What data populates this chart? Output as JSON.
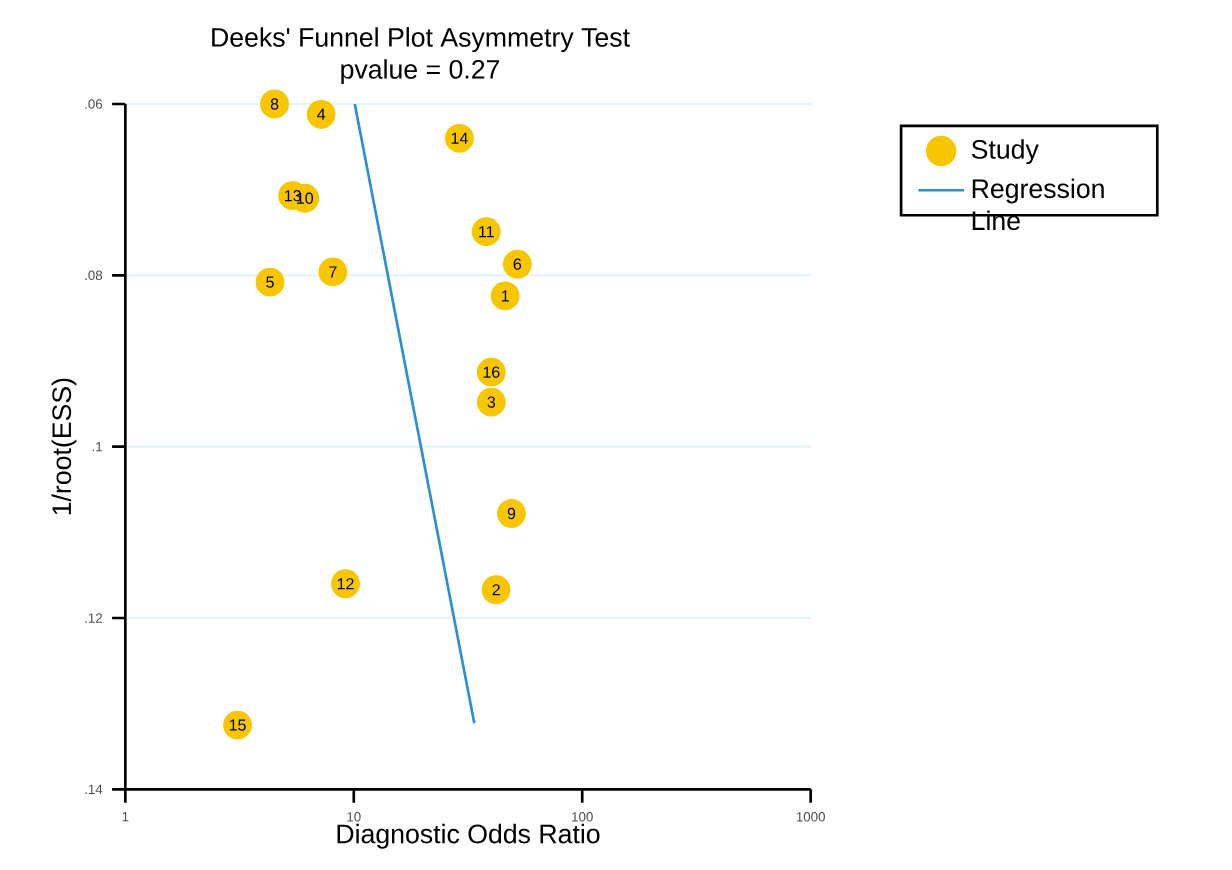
{
  "chart_data": {
    "type": "scatter",
    "title": "Deeks' Funnel Plot Asymmetry Test",
    "subtitle": "pvalue =   0.27",
    "xlabel": "Diagnostic Odds Ratio",
    "ylabel": "1/root(ESS)",
    "log": "x",
    "xlim": [
      1,
      1000
    ],
    "xticks": [
      1,
      10,
      100,
      1000
    ],
    "ylim": [
      0.14,
      0.06
    ],
    "yticks": [
      {
        "value": 0.06,
        "label": ".06"
      },
      {
        "value": 0.08,
        "label": ".08"
      },
      {
        "value": 0.1,
        "label": ".1"
      },
      {
        "value": 0.12,
        "label": ".12"
      },
      {
        "value": 0.14,
        "label": ".14"
      }
    ],
    "grid": "y",
    "legend": "right",
    "series": [
      {
        "name": "Study",
        "marker": "circle",
        "color": "#f7c600",
        "x": [
          4.5,
          7.2,
          29,
          5.4,
          6.1,
          38,
          52,
          8.1,
          4.3,
          46,
          40,
          40,
          49,
          9.2,
          42,
          3.1
        ],
        "values": [
          0.06,
          0.0612,
          0.064,
          0.0707,
          0.071,
          0.0749,
          0.0787,
          0.0796,
          0.0808,
          0.0824,
          0.0913,
          0.0948,
          0.1078,
          0.116,
          0.1167,
          0.1325
        ]
      },
      {
        "name": "Regression Line",
        "type": "line",
        "line_style": "solid",
        "color": "#2a8fd4",
        "x": [
          10.1,
          33.7
        ],
        "values": [
          0.06,
          0.1323
        ]
      }
    ],
    "annotations": [
      {
        "text": "8",
        "x": 4.5,
        "y": 0.06
      },
      {
        "text": "4",
        "x": 7.2,
        "y": 0.0612
      },
      {
        "text": "14",
        "x": 29,
        "y": 0.064
      },
      {
        "text": "13",
        "x": 5.4,
        "y": 0.0707
      },
      {
        "text": "10",
        "x": 6.1,
        "y": 0.071
      },
      {
        "text": "11",
        "x": 38,
        "y": 0.0749
      },
      {
        "text": "6",
        "x": 52,
        "y": 0.0787
      },
      {
        "text": "7",
        "x": 8.1,
        "y": 0.0796
      },
      {
        "text": "5",
        "x": 4.3,
        "y": 0.0808
      },
      {
        "text": "1",
        "x": 46,
        "y": 0.0824
      },
      {
        "text": "16",
        "x": 40,
        "y": 0.0913
      },
      {
        "text": "3",
        "x": 40,
        "y": 0.0948
      },
      {
        "text": "9",
        "x": 49,
        "y": 0.1078
      },
      {
        "text": "12",
        "x": 9.2,
        "y": 0.116
      },
      {
        "text": "2",
        "x": 42,
        "y": 0.1167
      },
      {
        "text": "15",
        "x": 3.1,
        "y": 0.1325
      }
    ]
  }
}
